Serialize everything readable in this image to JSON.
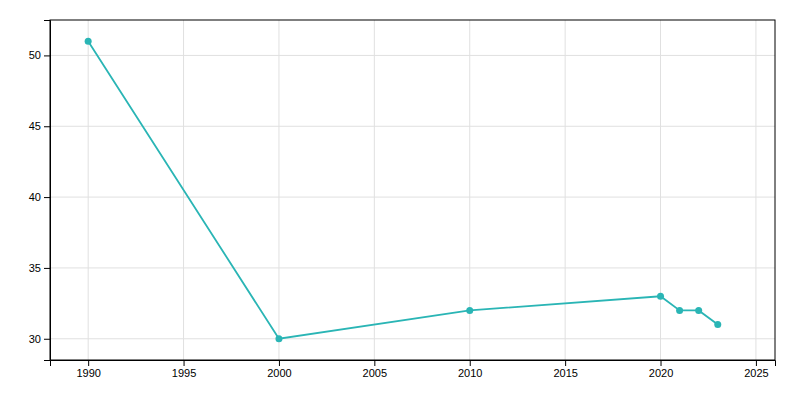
{
  "chart_data": {
    "type": "line",
    "x": [
      1990,
      2000,
      2010,
      2020,
      2021,
      2022,
      2023
    ],
    "values": [
      51,
      30,
      32,
      33,
      32,
      32,
      31
    ],
    "color": "#2ab5b5",
    "marker": "circle",
    "xlim": [
      1988,
      2026
    ],
    "ylim": [
      28.5,
      52.5
    ],
    "xticks": [
      1990,
      1995,
      2000,
      2005,
      2010,
      2015,
      2020,
      2025
    ],
    "yticks": [
      30,
      35,
      40,
      45,
      50
    ],
    "grid": true
  }
}
